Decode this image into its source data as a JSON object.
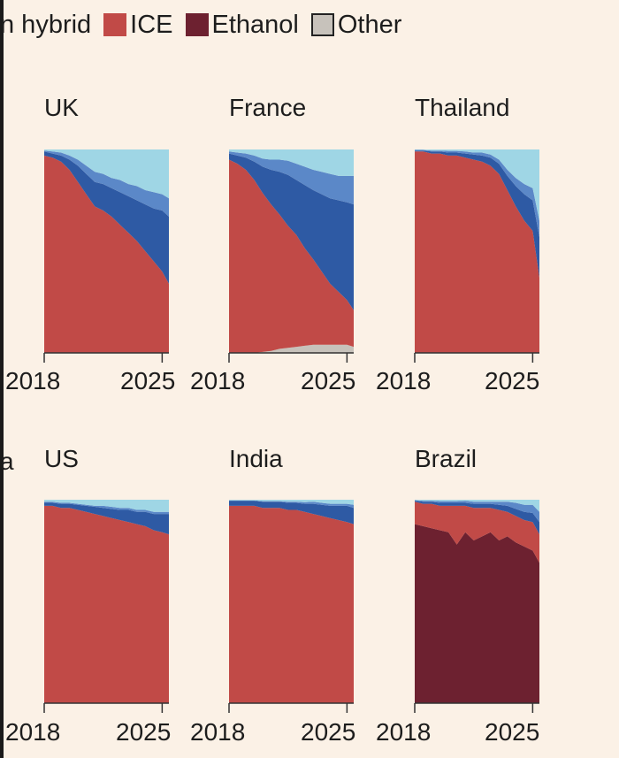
{
  "legend": [
    {
      "label": "n hybrid",
      "color": null
    },
    {
      "label": "ICE",
      "color": "#c14a47"
    },
    {
      "label": "Ethanol",
      "color": "#6d2130"
    },
    {
      "label": "Other",
      "color": "#c7c2bb"
    }
  ],
  "clipped_left_label": "a",
  "colors": {
    "ice": "#c14a47",
    "ethanol": "#6d2130",
    "other": "#c7c2bb",
    "plugin_hybrid": "#2e5aa4",
    "hybrid": "#5b88c8",
    "ev": "#9fd6e5",
    "axis": "#333333",
    "background": "#fbf1e6"
  },
  "chart_data": [
    {
      "type": "area",
      "title": "UK",
      "stacked": true,
      "percent": true,
      "xlim": [
        "2018",
        "2025"
      ],
      "ylim": [
        0,
        100
      ],
      "x": [
        2018.0,
        2018.5,
        2019.0,
        2019.5,
        2020.0,
        2020.5,
        2021.0,
        2021.5,
        2022.0,
        2022.5,
        2023.0,
        2023.5,
        2024.0,
        2024.5,
        2025.0,
        2025.4
      ],
      "series": [
        {
          "key": "ice",
          "values": [
            97,
            96,
            94,
            90,
            84,
            78,
            72,
            70,
            67,
            63,
            59,
            55,
            50,
            45,
            40,
            34
          ]
        },
        {
          "key": "plugin_hybrid",
          "values": [
            2,
            2,
            3,
            5,
            8,
            10,
            12,
            13,
            14,
            16,
            18,
            20,
            23,
            26,
            30,
            33
          ]
        },
        {
          "key": "hybrid",
          "values": [
            0.5,
            1,
            1.5,
            2,
            3,
            4,
            5,
            5,
            5,
            6,
            6,
            7,
            7,
            8,
            8,
            9
          ]
        },
        {
          "key": "ev",
          "values": [
            0.5,
            1,
            1.5,
            3,
            5,
            8,
            11,
            12,
            14,
            15,
            17,
            18,
            20,
            21,
            22,
            24
          ]
        }
      ],
      "xticks": [
        "2018",
        "2025"
      ]
    },
    {
      "type": "area",
      "title": "France",
      "stacked": true,
      "percent": true,
      "xlim": [
        "2018",
        "2025"
      ],
      "ylim": [
        0,
        100
      ],
      "x": [
        2018.0,
        2018.5,
        2019.0,
        2019.5,
        2020.0,
        2020.5,
        2021.0,
        2021.5,
        2022.0,
        2022.5,
        2023.0,
        2023.5,
        2024.0,
        2024.5,
        2025.0,
        2025.4
      ],
      "series": [
        {
          "key": "other",
          "values": [
            0,
            0,
            0,
            0,
            0.5,
            1,
            2,
            2.5,
            3,
            3.5,
            4,
            4,
            4,
            4,
            4,
            3
          ]
        },
        {
          "key": "ice",
          "values": [
            95,
            93,
            90,
            85,
            78,
            72,
            66,
            60,
            55,
            48,
            42,
            36,
            30,
            26,
            22,
            18
          ]
        },
        {
          "key": "plugin_hybrid",
          "values": [
            3,
            4,
            6,
            9,
            13,
            17,
            21,
            25,
            27,
            31,
            34,
            38,
            42,
            45,
            48,
            52
          ]
        },
        {
          "key": "hybrid",
          "values": [
            1,
            1.5,
            2,
            3,
            4,
            5,
            6,
            7,
            8,
            9,
            10,
            11,
            12,
            12,
            13,
            14
          ]
        },
        {
          "key": "ev",
          "values": [
            1,
            1.5,
            2,
            3,
            4.5,
            5,
            5,
            5.5,
            7,
            8.5,
            10,
            11,
            12,
            13,
            13,
            13
          ]
        }
      ],
      "xticks": [
        "2018",
        "2025"
      ]
    },
    {
      "type": "area",
      "title": "Thailand",
      "stacked": true,
      "percent": true,
      "xlim": [
        "2018",
        "2025"
      ],
      "ylim": [
        0,
        100
      ],
      "x": [
        2018.0,
        2018.5,
        2019.0,
        2019.5,
        2020.0,
        2020.5,
        2021.0,
        2021.5,
        2022.0,
        2022.5,
        2023.0,
        2023.5,
        2024.0,
        2024.5,
        2025.0,
        2025.4
      ],
      "series": [
        {
          "key": "ice",
          "values": [
            99,
            99,
            98,
            98,
            97,
            97,
            96,
            95,
            94,
            92,
            88,
            80,
            72,
            65,
            60,
            37
          ]
        },
        {
          "key": "plugin_hybrid",
          "values": [
            0.5,
            0.5,
            1,
            1,
            1.5,
            1.5,
            2,
            2.5,
            3,
            4,
            5,
            7,
            10,
            13,
            15,
            20
          ]
        },
        {
          "key": "hybrid",
          "values": [
            0.3,
            0.3,
            0.5,
            0.5,
            0.8,
            0.8,
            1,
            1,
            1.5,
            1.5,
            2,
            3,
            4,
            5,
            6,
            8
          ]
        },
        {
          "key": "ev",
          "values": [
            0.2,
            0.2,
            0.5,
            0.5,
            0.7,
            0.7,
            1,
            1.5,
            1.5,
            2.5,
            5,
            10,
            14,
            17,
            19,
            35
          ]
        }
      ],
      "xticks": [
        "2018",
        "2025"
      ]
    },
    {
      "type": "area",
      "title": "US",
      "stacked": true,
      "percent": true,
      "xlim": [
        "2018",
        "2025"
      ],
      "ylim": [
        0,
        100
      ],
      "x": [
        2018.0,
        2018.5,
        2019.0,
        2019.5,
        2020.0,
        2020.5,
        2021.0,
        2021.5,
        2022.0,
        2022.5,
        2023.0,
        2023.5,
        2024.0,
        2024.5,
        2025.0,
        2025.4
      ],
      "series": [
        {
          "key": "ice",
          "values": [
            97,
            97,
            96,
            96,
            95,
            94,
            93,
            92,
            91,
            90,
            89,
            88,
            87,
            85,
            84,
            83
          ]
        },
        {
          "key": "plugin_hybrid",
          "values": [
            1.5,
            1.5,
            2,
            2,
            2.5,
            3,
            3.5,
            4,
            4.5,
            5,
            6,
            6,
            7,
            8,
            9,
            10
          ]
        },
        {
          "key": "hybrid",
          "values": [
            0.5,
            0.5,
            0.5,
            0.5,
            0.5,
            0.5,
            0.5,
            1,
            1,
            1,
            1,
            1,
            1,
            1,
            1,
            1
          ]
        },
        {
          "key": "ev",
          "values": [
            1,
            1,
            1.5,
            1.5,
            2,
            2.5,
            3,
            3,
            3.5,
            4,
            4,
            5,
            5,
            6,
            6,
            6
          ]
        }
      ],
      "xticks": [
        "2018",
        "2025"
      ]
    },
    {
      "type": "area",
      "title": "India",
      "stacked": true,
      "percent": true,
      "xlim": [
        "2018",
        "2025"
      ],
      "ylim": [
        0,
        100
      ],
      "x": [
        2018.0,
        2018.5,
        2019.0,
        2019.5,
        2020.0,
        2020.5,
        2021.0,
        2021.5,
        2022.0,
        2022.5,
        2023.0,
        2023.5,
        2024.0,
        2024.5,
        2025.0,
        2025.4
      ],
      "series": [
        {
          "key": "ice",
          "values": [
            97,
            97,
            97,
            97,
            96,
            96,
            96,
            95,
            95,
            94,
            93,
            92,
            91,
            90,
            89,
            88
          ]
        },
        {
          "key": "plugin_hybrid",
          "values": [
            2.5,
            2.5,
            2.5,
            2.5,
            3,
            3,
            3,
            3.5,
            3.5,
            4,
            5,
            5.5,
            6,
            7,
            8,
            8
          ]
        },
        {
          "key": "hybrid",
          "values": [
            0.2,
            0.2,
            0.2,
            0.2,
            0.3,
            0.3,
            0.3,
            0.5,
            0.5,
            0.8,
            1,
            1,
            1,
            1,
            1,
            1.5
          ]
        },
        {
          "key": "ev",
          "values": [
            0.3,
            0.3,
            0.3,
            0.3,
            0.7,
            0.7,
            0.7,
            1,
            1,
            1.2,
            1,
            1.5,
            2,
            2,
            2,
            2.5
          ]
        }
      ],
      "xticks": [
        "2018",
        "2025"
      ]
    },
    {
      "type": "area",
      "title": "Brazil",
      "stacked": true,
      "percent": true,
      "xlim": [
        "2018",
        "2025"
      ],
      "ylim": [
        0,
        100
      ],
      "x": [
        2018.0,
        2018.5,
        2019.0,
        2019.5,
        2020.0,
        2020.5,
        2021.0,
        2021.5,
        2022.0,
        2022.5,
        2023.0,
        2023.5,
        2024.0,
        2024.5,
        2025.0,
        2025.4
      ],
      "series": [
        {
          "key": "ethanol",
          "values": [
            88,
            87,
            86,
            85,
            84,
            78,
            84,
            80,
            82,
            84,
            80,
            82,
            79,
            77,
            75,
            69
          ]
        },
        {
          "key": "ice",
          "values": [
            11,
            11,
            12,
            12,
            13,
            19,
            13,
            16,
            14,
            12,
            15,
            12,
            13,
            13,
            14,
            14
          ]
        },
        {
          "key": "plugin_hybrid",
          "values": [
            0.5,
            1,
            1,
            1.5,
            1.5,
            1.5,
            1.5,
            2,
            2,
            2,
            2.5,
            3,
            3.5,
            4,
            4.5,
            6
          ]
        },
        {
          "key": "hybrid",
          "values": [
            0.3,
            0.5,
            0.5,
            0.8,
            0.8,
            0.8,
            1,
            1,
            1,
            1,
            1.5,
            2,
            3,
            3.5,
            4,
            5
          ]
        },
        {
          "key": "ev",
          "values": [
            0.2,
            0.5,
            0.5,
            0.7,
            0.7,
            0.7,
            0.5,
            1,
            1,
            1,
            1,
            1,
            1.5,
            2.5,
            2.5,
            6
          ]
        }
      ],
      "xticks": [
        "2018",
        "2025"
      ]
    }
  ]
}
